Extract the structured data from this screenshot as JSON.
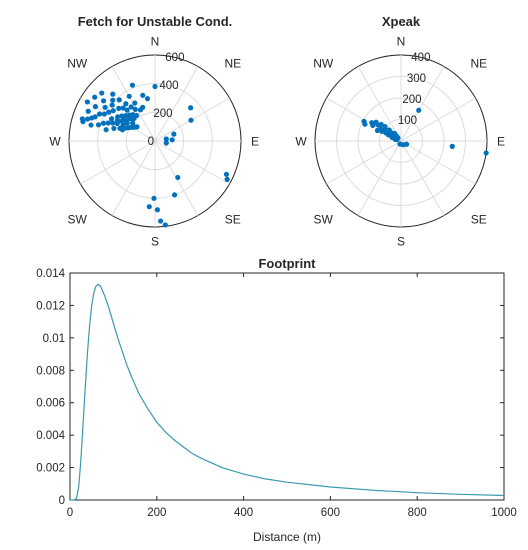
{
  "chart_data": [
    {
      "type": "scatter",
      "subtype": "polar",
      "title": "Fetch for Unstable Cond.",
      "compass_labels": [
        "N",
        "NE",
        "E",
        "SE",
        "S",
        "SW",
        "W",
        "NW"
      ],
      "r_ticks": [
        "0",
        "200",
        "400",
        "600"
      ],
      "rlim": [
        0,
        600
      ],
      "angle_zero": "N",
      "angle_direction": "clockwise",
      "color": "#0072BD",
      "points": [
        {
          "dir": 285,
          "r": 520
        },
        {
          "dir": 288,
          "r": 495
        },
        {
          "dir": 290,
          "r": 470
        },
        {
          "dir": 292,
          "r": 450
        },
        {
          "dir": 294,
          "r": 510
        },
        {
          "dir": 296,
          "r": 430
        },
        {
          "dir": 298,
          "r": 400
        },
        {
          "dir": 300,
          "r": 480
        },
        {
          "dir": 302,
          "r": 380
        },
        {
          "dir": 304,
          "r": 420
        },
        {
          "dir": 306,
          "r": 360
        },
        {
          "dir": 308,
          "r": 455
        },
        {
          "dir": 310,
          "r": 390
        },
        {
          "dir": 312,
          "r": 340
        },
        {
          "dir": 314,
          "r": 410
        },
        {
          "dir": 316,
          "r": 320
        },
        {
          "dir": 318,
          "r": 440
        },
        {
          "dir": 286,
          "r": 410
        },
        {
          "dir": 289,
          "r": 380
        },
        {
          "dir": 291,
          "r": 350
        },
        {
          "dir": 293,
          "r": 320
        },
        {
          "dir": 295,
          "r": 290
        },
        {
          "dir": 297,
          "r": 340
        },
        {
          "dir": 299,
          "r": 300
        },
        {
          "dir": 301,
          "r": 270
        },
        {
          "dir": 303,
          "r": 310
        },
        {
          "dir": 305,
          "r": 260
        },
        {
          "dir": 307,
          "r": 290
        },
        {
          "dir": 309,
          "r": 245
        },
        {
          "dir": 311,
          "r": 270
        },
        {
          "dir": 313,
          "r": 230
        },
        {
          "dir": 315,
          "r": 255
        },
        {
          "dir": 317,
          "r": 215
        },
        {
          "dir": 320,
          "r": 240
        },
        {
          "dir": 287,
          "r": 300
        },
        {
          "dir": 290,
          "r": 260
        },
        {
          "dir": 293,
          "r": 230
        },
        {
          "dir": 296,
          "r": 210
        },
        {
          "dir": 299,
          "r": 195
        },
        {
          "dir": 302,
          "r": 180
        },
        {
          "dir": 305,
          "r": 170
        },
        {
          "dir": 308,
          "r": 160
        },
        {
          "dir": 283,
          "r": 350
        },
        {
          "dir": 284,
          "r": 460
        },
        {
          "dir": 287,
          "r": 530
        },
        {
          "dir": 300,
          "r": 545
        },
        {
          "dir": 306,
          "r": 520
        },
        {
          "dir": 312,
          "r": 500
        },
        {
          "dir": 319,
          "r": 380
        },
        {
          "dir": 322,
          "r": 330
        },
        {
          "dir": 325,
          "r": 290
        },
        {
          "dir": 328,
          "r": 260
        },
        {
          "dir": 332,
          "r": 300
        },
        {
          "dir": 335,
          "r": 240
        },
        {
          "dir": 340,
          "r": 250
        },
        {
          "dir": 345,
          "r": 330
        },
        {
          "dir": 350,
          "r": 300
        },
        {
          "dir": 330,
          "r": 360
        },
        {
          "dir": 338,
          "r": 420
        },
        {
          "dir": 0,
          "r": 380
        },
        {
          "dir": 318,
          "r": 290
        },
        {
          "dir": 324,
          "r": 220
        },
        {
          "dir": 289,
          "r": 240
        },
        {
          "dir": 297,
          "r": 250
        },
        {
          "dir": 303,
          "r": 230
        },
        {
          "dir": 309,
          "r": 200
        },
        {
          "dir": 47,
          "r": 340
        },
        {
          "dir": 60,
          "r": 290
        },
        {
          "dir": 70,
          "r": 140
        },
        {
          "dir": 80,
          "r": 80
        },
        {
          "dir": 86,
          "r": 120
        },
        {
          "dir": 100,
          "r": 80
        },
        {
          "dir": 115,
          "r": 550
        },
        {
          "dir": 118,
          "r": 570
        },
        {
          "dir": 148,
          "r": 300
        },
        {
          "dir": 160,
          "r": 400
        },
        {
          "dir": 178,
          "r": 480
        },
        {
          "dir": 181,
          "r": 400
        },
        {
          "dir": 185,
          "r": 460
        },
        {
          "dir": 176,
          "r": 560
        },
        {
          "dir": 173,
          "r": 590
        }
      ]
    },
    {
      "type": "scatter",
      "subtype": "polar",
      "title": "Xpeak",
      "compass_labels": [
        "N",
        "NE",
        "E",
        "SE",
        "S",
        "SW",
        "W",
        "NW"
      ],
      "r_ticks": [
        "100",
        "200",
        "300",
        "400"
      ],
      "rlim": [
        0,
        400
      ],
      "angle_zero": "N",
      "angle_direction": "clockwise",
      "color": "#0072BD",
      "points": [
        {
          "dir": 295,
          "r": 185
        },
        {
          "dir": 298,
          "r": 195
        },
        {
          "dir": 302,
          "r": 160
        },
        {
          "dir": 305,
          "r": 130
        },
        {
          "dir": 307,
          "r": 145
        },
        {
          "dir": 310,
          "r": 120
        },
        {
          "dir": 312,
          "r": 100
        },
        {
          "dir": 300,
          "r": 110
        },
        {
          "dir": 303,
          "r": 95
        },
        {
          "dir": 306,
          "r": 85
        },
        {
          "dir": 308,
          "r": 70
        },
        {
          "dir": 310,
          "r": 60
        },
        {
          "dir": 313,
          "r": 75
        },
        {
          "dir": 315,
          "r": 50
        },
        {
          "dir": 298,
          "r": 80
        },
        {
          "dir": 296,
          "r": 65
        },
        {
          "dir": 301,
          "r": 55
        },
        {
          "dir": 304,
          "r": 45
        },
        {
          "dir": 309,
          "r": 40
        },
        {
          "dir": 312,
          "r": 35
        },
        {
          "dir": 318,
          "r": 30
        },
        {
          "dir": 300,
          "r": 35
        },
        {
          "dir": 292,
          "r": 45
        },
        {
          "dir": 296,
          "r": 30
        },
        {
          "dir": 305,
          "r": 25
        },
        {
          "dir": 290,
          "r": 20
        },
        {
          "dir": 285,
          "r": 28
        },
        {
          "dir": 315,
          "r": 20
        },
        {
          "dir": 320,
          "r": 45
        },
        {
          "dir": 299,
          "r": 150
        },
        {
          "dir": 294,
          "r": 120
        },
        {
          "dir": 297,
          "r": 100
        },
        {
          "dir": 303,
          "r": 70
        },
        {
          "dir": 308,
          "r": 55
        },
        {
          "dir": 311,
          "r": 50
        },
        {
          "dir": 300,
          "r": 60
        },
        {
          "dir": 30,
          "r": 165
        },
        {
          "dir": 96,
          "r": 240
        },
        {
          "dir": 98,
          "r": 400
        },
        {
          "dir": 120,
          "r": 30
        },
        {
          "dir": 150,
          "r": 20
        },
        {
          "dir": 200,
          "r": 15
        }
      ]
    },
    {
      "type": "line",
      "title": "Footprint",
      "xlabel": "Distance (m)",
      "ylabel": "",
      "xlim": [
        0,
        1000
      ],
      "ylim": [
        0,
        0.014
      ],
      "x_ticks": [
        "0",
        "200",
        "400",
        "600",
        "800",
        "1000"
      ],
      "y_ticks": [
        "0",
        "0.002",
        "0.004",
        "0.006",
        "0.008",
        "0.01",
        "0.012",
        "0.014"
      ],
      "color": "#3A9AB0",
      "x": [
        0,
        10,
        15,
        20,
        25,
        30,
        35,
        40,
        45,
        50,
        55,
        60,
        65,
        70,
        75,
        80,
        90,
        100,
        110,
        120,
        130,
        140,
        150,
        160,
        180,
        200,
        220,
        240,
        260,
        280,
        300,
        350,
        400,
        450,
        500,
        600,
        700,
        800,
        900,
        1000
      ],
      "y": [
        0,
        0.0,
        0.0001,
        0.0008,
        0.0024,
        0.0046,
        0.0069,
        0.009,
        0.0107,
        0.012,
        0.0128,
        0.0132,
        0.0133,
        0.0132,
        0.0129,
        0.0126,
        0.0118,
        0.0109,
        0.01,
        0.0092,
        0.0084,
        0.0077,
        0.0071,
        0.0065,
        0.0056,
        0.0048,
        0.0042,
        0.0037,
        0.0033,
        0.0029,
        0.0026,
        0.002,
        0.0016,
        0.0013,
        0.0011,
        0.0008,
        0.0006,
        0.00045,
        0.00035,
        0.00028
      ]
    }
  ]
}
